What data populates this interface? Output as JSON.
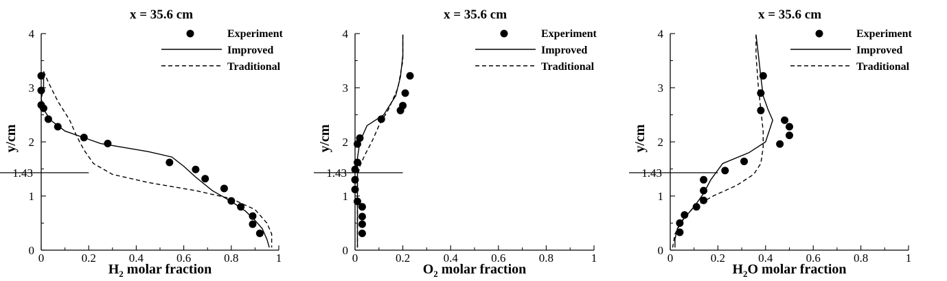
{
  "chart_data": [
    {
      "type": "line",
      "title": "x = 35.6 cm",
      "xlabel": "H",
      "xlabel_sub": "2",
      "xlabel_rest": " molar fraction",
      "ylabel": "y/cm",
      "xlim": [
        0,
        1
      ],
      "ylim": [
        0,
        4
      ],
      "xticks": [
        "0",
        "0.2",
        "0.4",
        "0.6",
        "0.8",
        "1"
      ],
      "yticks": [
        "0",
        "1",
        "2",
        "3",
        "4"
      ],
      "ref_line": {
        "label": "1.43",
        "y": 1.43,
        "x_end": 0.2
      },
      "legend": [
        "Experiment",
        "Improved",
        "Traditional"
      ],
      "series": [
        {
          "name": "Experiment",
          "style": "markers",
          "points": [
            [
              0.0,
              3.22
            ],
            [
              0.0,
              2.95
            ],
            [
              0.0,
              2.68
            ],
            [
              0.01,
              2.62
            ],
            [
              0.03,
              2.42
            ],
            [
              0.07,
              2.28
            ],
            [
              0.18,
              2.08
            ],
            [
              0.28,
              1.97
            ],
            [
              0.54,
              1.62
            ],
            [
              0.65,
              1.49
            ],
            [
              0.69,
              1.32
            ],
            [
              0.77,
              1.14
            ],
            [
              0.8,
              0.91
            ],
            [
              0.84,
              0.8
            ],
            [
              0.89,
              0.63
            ],
            [
              0.89,
              0.48
            ],
            [
              0.92,
              0.31
            ]
          ]
        },
        {
          "name": "Improved",
          "style": "solid",
          "points": [
            [
              0.01,
              3.3
            ],
            [
              0.01,
              3.0
            ],
            [
              0.0,
              2.8
            ],
            [
              0.01,
              2.6
            ],
            [
              0.04,
              2.4
            ],
            [
              0.1,
              2.2
            ],
            [
              0.25,
              1.97
            ],
            [
              0.45,
              1.82
            ],
            [
              0.55,
              1.72
            ],
            [
              0.6,
              1.55
            ],
            [
              0.65,
              1.35
            ],
            [
              0.72,
              1.1
            ],
            [
              0.8,
              0.9
            ],
            [
              0.86,
              0.72
            ],
            [
              0.9,
              0.55
            ],
            [
              0.93,
              0.4
            ],
            [
              0.95,
              0.2
            ],
            [
              0.96,
              0.05
            ]
          ]
        },
        {
          "name": "Traditional",
          "style": "dashed",
          "points": [
            [
              0.01,
              3.3
            ],
            [
              0.03,
              3.1
            ],
            [
              0.07,
              2.75
            ],
            [
              0.12,
              2.4
            ],
            [
              0.15,
              2.1
            ],
            [
              0.18,
              1.85
            ],
            [
              0.22,
              1.6
            ],
            [
              0.3,
              1.4
            ],
            [
              0.45,
              1.25
            ],
            [
              0.65,
              1.1
            ],
            [
              0.8,
              0.95
            ],
            [
              0.9,
              0.75
            ],
            [
              0.95,
              0.5
            ],
            [
              0.97,
              0.3
            ],
            [
              0.97,
              0.05
            ]
          ]
        }
      ]
    },
    {
      "type": "line",
      "title": "x = 35.6 cm",
      "xlabel": "O",
      "xlabel_sub": "2",
      "xlabel_rest": " molar fraction",
      "ylabel": "y/cm",
      "xlim": [
        0,
        1
      ],
      "ylim": [
        0,
        4
      ],
      "xticks": [
        "0",
        "0.2",
        "0.4",
        "0.6",
        "0.8",
        "1"
      ],
      "yticks": [
        "0",
        "1",
        "2",
        "3",
        "4"
      ],
      "ref_line": {
        "label": "1.43",
        "y": 1.43,
        "x_end": 0.2
      },
      "legend": [
        "Experiment",
        "Improved",
        "Traditional"
      ],
      "series": [
        {
          "name": "Experiment",
          "style": "markers",
          "points": [
            [
              0.23,
              3.22
            ],
            [
              0.21,
              2.9
            ],
            [
              0.2,
              2.67
            ],
            [
              0.19,
              2.58
            ],
            [
              0.11,
              2.42
            ],
            [
              0.02,
              2.07
            ],
            [
              0.01,
              1.96
            ],
            [
              0.01,
              1.62
            ],
            [
              0.0,
              1.49
            ],
            [
              0.0,
              1.3
            ],
            [
              0.0,
              1.12
            ],
            [
              0.01,
              0.9
            ],
            [
              0.03,
              0.8
            ],
            [
              0.03,
              0.62
            ],
            [
              0.03,
              0.48
            ],
            [
              0.03,
              0.31
            ]
          ]
        },
        {
          "name": "Improved",
          "style": "solid",
          "points": [
            [
              0.2,
              3.98
            ],
            [
              0.2,
              3.6
            ],
            [
              0.19,
              3.2
            ],
            [
              0.17,
              2.85
            ],
            [
              0.12,
              2.5
            ],
            [
              0.05,
              2.3
            ],
            [
              0.02,
              2.0
            ],
            [
              0.01,
              1.7
            ],
            [
              0.01,
              1.4
            ],
            [
              0.01,
              1.1
            ],
            [
              0.01,
              0.8
            ],
            [
              0.01,
              0.5
            ],
            [
              0.01,
              0.2
            ],
            [
              0.01,
              0.05
            ]
          ]
        },
        {
          "name": "Traditional",
          "style": "dashed",
          "points": [
            [
              0.2,
              3.98
            ],
            [
              0.2,
              3.5
            ],
            [
              0.18,
              3.0
            ],
            [
              0.14,
              2.6
            ],
            [
              0.1,
              2.3
            ],
            [
              0.07,
              2.0
            ],
            [
              0.04,
              1.75
            ],
            [
              0.02,
              1.55
            ],
            [
              0.01,
              1.35
            ],
            [
              0.01,
              1.0
            ],
            [
              0.01,
              0.6
            ],
            [
              0.01,
              0.2
            ],
            [
              0.01,
              0.05
            ]
          ]
        }
      ]
    },
    {
      "type": "line",
      "title": "x = 35.6 cm",
      "xlabel": "H",
      "xlabel_sub": "2",
      "xlabel_rest": "O molar fraction",
      "ylabel": "y/cm",
      "xlim": [
        0,
        1
      ],
      "ylim": [
        0,
        4
      ],
      "xticks": [
        "0",
        "0.2",
        "0.4",
        "0.6",
        "0.8",
        "1"
      ],
      "yticks": [
        "0",
        "1",
        "2",
        "3",
        "4"
      ],
      "ref_line": {
        "label": "1.43",
        "y": 1.43,
        "x_end": 0.2
      },
      "legend": [
        "Experiment",
        "Improved",
        "Traditional"
      ],
      "series": [
        {
          "name": "Experiment",
          "style": "markers",
          "points": [
            [
              0.39,
              3.22
            ],
            [
              0.38,
              2.9
            ],
            [
              0.38,
              2.58
            ],
            [
              0.48,
              2.4
            ],
            [
              0.5,
              2.28
            ],
            [
              0.5,
              2.12
            ],
            [
              0.46,
              1.96
            ],
            [
              0.31,
              1.64
            ],
            [
              0.23,
              1.47
            ],
            [
              0.14,
              1.3
            ],
            [
              0.14,
              1.1
            ],
            [
              0.14,
              0.92
            ],
            [
              0.11,
              0.8
            ],
            [
              0.06,
              0.65
            ],
            [
              0.04,
              0.5
            ],
            [
              0.04,
              0.33
            ]
          ]
        },
        {
          "name": "Improved",
          "style": "solid",
          "points": [
            [
              0.36,
              3.98
            ],
            [
              0.37,
              3.6
            ],
            [
              0.38,
              3.2
            ],
            [
              0.39,
              2.85
            ],
            [
              0.41,
              2.6
            ],
            [
              0.43,
              2.4
            ],
            [
              0.4,
              2.0
            ],
            [
              0.33,
              1.8
            ],
            [
              0.22,
              1.6
            ],
            [
              0.17,
              1.3
            ],
            [
              0.14,
              1.05
            ],
            [
              0.1,
              0.8
            ],
            [
              0.06,
              0.6
            ],
            [
              0.03,
              0.4
            ],
            [
              0.02,
              0.2
            ],
            [
              0.02,
              0.05
            ]
          ]
        },
        {
          "name": "Traditional",
          "style": "dashed",
          "points": [
            [
              0.36,
              3.98
            ],
            [
              0.36,
              3.6
            ],
            [
              0.37,
              3.0
            ],
            [
              0.38,
              2.6
            ],
            [
              0.39,
              2.2
            ],
            [
              0.39,
              1.9
            ],
            [
              0.38,
              1.6
            ],
            [
              0.35,
              1.4
            ],
            [
              0.28,
              1.2
            ],
            [
              0.18,
              1.0
            ],
            [
              0.1,
              0.8
            ],
            [
              0.05,
              0.55
            ],
            [
              0.02,
              0.3
            ],
            [
              0.01,
              0.05
            ]
          ]
        }
      ]
    }
  ]
}
